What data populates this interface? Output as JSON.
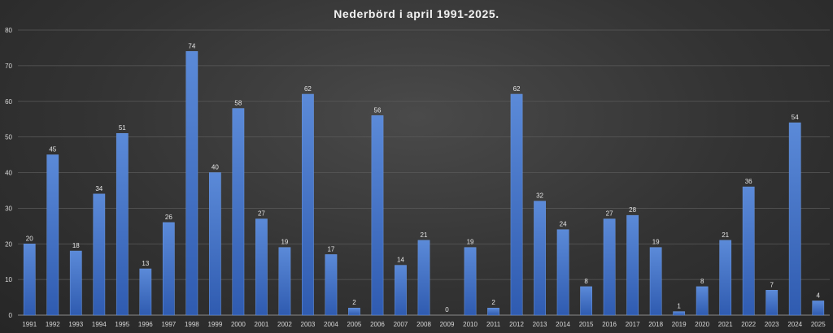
{
  "chart_data": {
    "type": "bar",
    "title": "Nederbörd i april 1991-2025.",
    "xlabel": "",
    "ylabel": "",
    "ylim": [
      0,
      80
    ],
    "yticks": [
      0,
      10,
      20,
      30,
      40,
      50,
      60,
      70,
      80
    ],
    "grid": true,
    "legend": "none",
    "bar_color": "#4472c4",
    "categories": [
      "1991",
      "1992",
      "1993",
      "1994",
      "1995",
      "1996",
      "1997",
      "1998",
      "1999",
      "2000",
      "2001",
      "2002",
      "2003",
      "2004",
      "2005",
      "2006",
      "2007",
      "2008",
      "2009",
      "2010",
      "2011",
      "2012",
      "2013",
      "2014",
      "2015",
      "2016",
      "2017",
      "2018",
      "2019",
      "2020",
      "2021",
      "2022",
      "2023",
      "2024",
      "2025"
    ],
    "values": [
      20,
      45,
      18,
      34,
      51,
      13,
      26,
      74,
      40,
      58,
      27,
      19,
      62,
      17,
      2,
      56,
      14,
      21,
      0,
      19,
      2,
      62,
      32,
      24,
      8,
      27,
      28,
      19,
      1,
      8,
      21,
      36,
      7,
      54,
      4
    ],
    "data_labels": [
      "20",
      "45",
      "18",
      "34",
      "51",
      "13",
      "26",
      "74",
      "40",
      "58",
      "27",
      "19",
      "62",
      "17",
      "2",
      "56",
      "14",
      "21",
      "0",
      "19",
      "2",
      "62",
      "32",
      "24",
      "8",
      "27",
      "28",
      "19",
      "1",
      "8",
      "21",
      "36",
      "7",
      "54",
      "4"
    ]
  }
}
